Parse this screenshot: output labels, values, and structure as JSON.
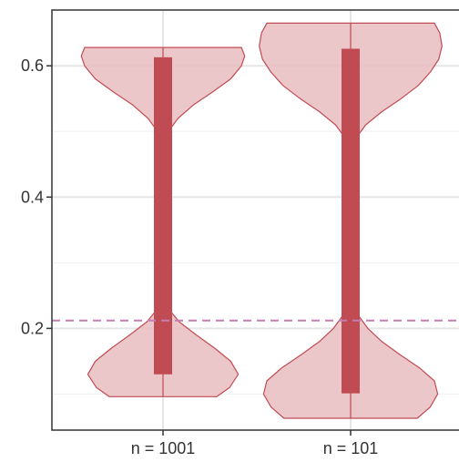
{
  "chart_data": {
    "type": "violin",
    "title": "",
    "xlabel": "",
    "ylabel": "",
    "categories": [
      "n = 1001",
      "n = 101"
    ],
    "ylim": [
      0.045,
      0.685
    ],
    "yticks": [
      0.2,
      0.4,
      0.6
    ],
    "ytick_labels": [
      "0.2",
      "0.4",
      "0.6"
    ],
    "reference_line": {
      "y": 0.212,
      "style": "dashed",
      "color": "#C37FB1"
    },
    "series": [
      {
        "category": "n = 1001",
        "range": [
          0.13,
          0.613
        ],
        "violin": {
          "min": 0.096,
          "max": 0.628,
          "profile": [
            [
              0.096,
              0.5
            ],
            [
              0.11,
              0.62
            ],
            [
              0.13,
              0.7
            ],
            [
              0.15,
              0.63
            ],
            [
              0.17,
              0.48
            ],
            [
              0.19,
              0.31
            ],
            [
              0.21,
              0.15
            ],
            [
              0.23,
              0.05
            ],
            [
              0.25,
              0.0
            ],
            [
              0.48,
              0.0
            ],
            [
              0.5,
              0.05
            ],
            [
              0.52,
              0.14
            ],
            [
              0.54,
              0.28
            ],
            [
              0.56,
              0.46
            ],
            [
              0.58,
              0.63
            ],
            [
              0.6,
              0.73
            ],
            [
              0.615,
              0.76
            ],
            [
              0.628,
              0.73
            ]
          ]
        }
      },
      {
        "category": "n = 101",
        "range": [
          0.101,
          0.626
        ],
        "violin": {
          "min": 0.063,
          "max": 0.665,
          "profile": [
            [
              0.063,
              0.62
            ],
            [
              0.08,
              0.74
            ],
            [
              0.1,
              0.81
            ],
            [
              0.12,
              0.78
            ],
            [
              0.14,
              0.64
            ],
            [
              0.16,
              0.46
            ],
            [
              0.18,
              0.29
            ],
            [
              0.2,
              0.16
            ],
            [
              0.22,
              0.07
            ],
            [
              0.24,
              0.0
            ],
            [
              0.47,
              0.0
            ],
            [
              0.49,
              0.05
            ],
            [
              0.51,
              0.14
            ],
            [
              0.53,
              0.29
            ],
            [
              0.55,
              0.47
            ],
            [
              0.57,
              0.63
            ],
            [
              0.59,
              0.74
            ],
            [
              0.61,
              0.82
            ],
            [
              0.63,
              0.85
            ],
            [
              0.65,
              0.83
            ],
            [
              0.665,
              0.78
            ]
          ]
        }
      }
    ],
    "colors": {
      "violin_fill": "#E8BDBF",
      "violin_stroke": "#C14B53",
      "range_bar": "#C14B53",
      "grid": "#E6E6E6",
      "axis": "#333333"
    },
    "grid": true,
    "legend": "none"
  }
}
